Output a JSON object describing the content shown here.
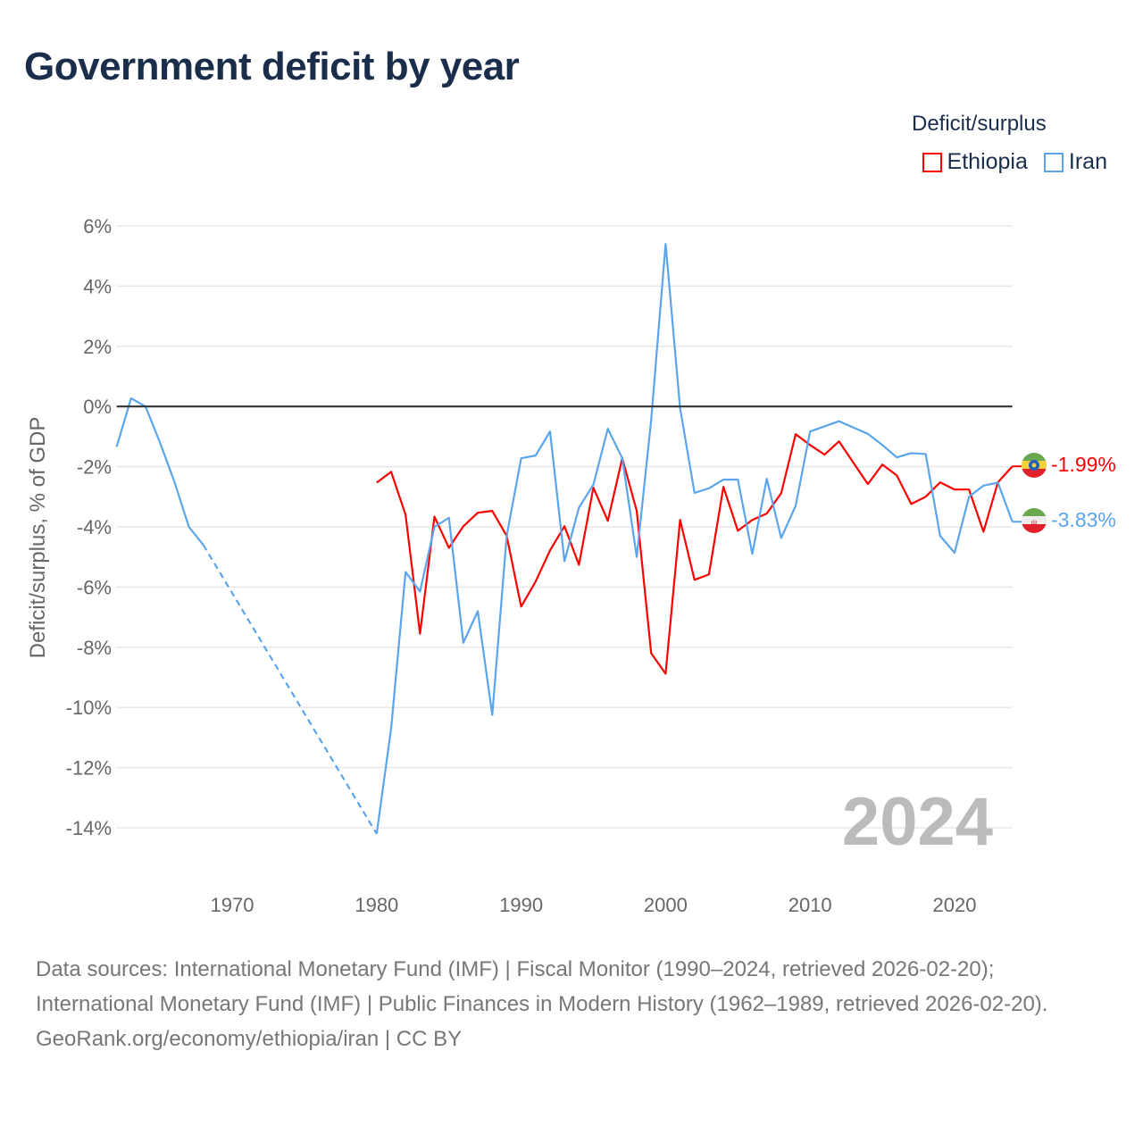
{
  "title": "Government deficit by year",
  "legend": {
    "title": "Deficit/surplus",
    "items": [
      {
        "name": "Ethiopia",
        "color": "#ff0000"
      },
      {
        "name": "Iran",
        "color": "#5aa5ec"
      }
    ]
  },
  "footer": {
    "sources": "Data sources: International Monetary Fund (IMF) | Fiscal Monitor (1990–2024, retrieved 2026-02-20); International Monetary Fund (IMF) | Public Finances in Modern History (1962–1989, retrieved 2026-02-20).",
    "credit": "GeoRank.org/economy/ethiopia/iran | CC BY"
  },
  "chart_data": {
    "type": "line",
    "title": "Government deficit by year",
    "ylabel": "Deficit/surplus, % of GDP",
    "xlabel": "",
    "xlim": [
      1962,
      2024
    ],
    "ylim": [
      -14,
      6
    ],
    "xticks": [
      1970,
      1980,
      1990,
      2000,
      2010,
      2020
    ],
    "yticks": [
      6,
      4,
      2,
      0,
      -2,
      -4,
      -6,
      -8,
      -10,
      -12,
      -14
    ],
    "grid": true,
    "year_label": "2024",
    "legend_position": "top-right",
    "series": [
      {
        "name": "Ethiopia",
        "color": "#ff0000",
        "end_label": "-1.99%",
        "x": [
          1980,
          1981,
          1982,
          1983,
          1984,
          1985,
          1986,
          1987,
          1988,
          1989,
          1990,
          1991,
          1992,
          1993,
          1994,
          1995,
          1996,
          1997,
          1998,
          1999,
          2000,
          2001,
          2002,
          2003,
          2004,
          2005,
          2006,
          2007,
          2008,
          2009,
          2010,
          2011,
          2012,
          2013,
          2014,
          2015,
          2016,
          2017,
          2018,
          2019,
          2020,
          2021,
          2022,
          2023,
          2024
        ],
        "values": [
          -2.53,
          -2.17,
          -3.6,
          -7.55,
          -3.66,
          -4.7,
          -3.98,
          -3.53,
          -3.47,
          -4.3,
          -6.65,
          -5.82,
          -4.78,
          -3.98,
          -5.26,
          -2.7,
          -3.8,
          -1.72,
          -3.47,
          -8.2,
          -8.88,
          -3.77,
          -5.76,
          -5.58,
          -2.67,
          -4.13,
          -3.77,
          -3.56,
          -2.88,
          -0.92,
          -1.28,
          -1.6,
          -1.16,
          -1.87,
          -2.58,
          -1.93,
          -2.29,
          -3.24,
          -3.0,
          -2.52,
          -2.76,
          -2.76,
          -4.16,
          -2.52,
          -1.99
        ]
      },
      {
        "name": "Iran",
        "color": "#5aa5ec",
        "end_label": "-3.83%",
        "x": [
          1962,
          1963,
          1964,
          1965,
          1966,
          1967,
          1968,
          1980,
          1981,
          1982,
          1983,
          1984,
          1985,
          1986,
          1987,
          1988,
          1989,
          1990,
          1991,
          1992,
          1993,
          1994,
          1995,
          1996,
          1997,
          1998,
          1999,
          2000,
          2001,
          2002,
          2003,
          2004,
          2005,
          2006,
          2007,
          2008,
          2009,
          2010,
          2011,
          2012,
          2013,
          2014,
          2015,
          2016,
          2017,
          2018,
          2019,
          2020,
          2021,
          2022,
          2023,
          2024
        ],
        "values": [
          -1.34,
          0.27,
          0,
          -1.2,
          -2.5,
          -4.0,
          -4.6,
          -14.2,
          -10.7,
          -5.5,
          -6.15,
          -4.0,
          -3.7,
          -7.85,
          -6.8,
          -10.25,
          -4.3,
          -1.72,
          -1.63,
          -0.83,
          -5.14,
          -3.36,
          -2.6,
          -0.74,
          -1.72,
          -5.0,
          -0.45,
          5.4,
          -0.05,
          -2.87,
          -2.72,
          -2.43,
          -2.43,
          -4.9,
          -2.4,
          -4.37,
          -3.3,
          -0.83,
          -0.66,
          -0.49,
          -0.7,
          -0.91,
          -1.28,
          -1.69,
          -1.55,
          -1.58,
          -4.3,
          -4.86,
          -3.0,
          -2.63,
          -2.53,
          -3.83
        ]
      }
    ]
  }
}
